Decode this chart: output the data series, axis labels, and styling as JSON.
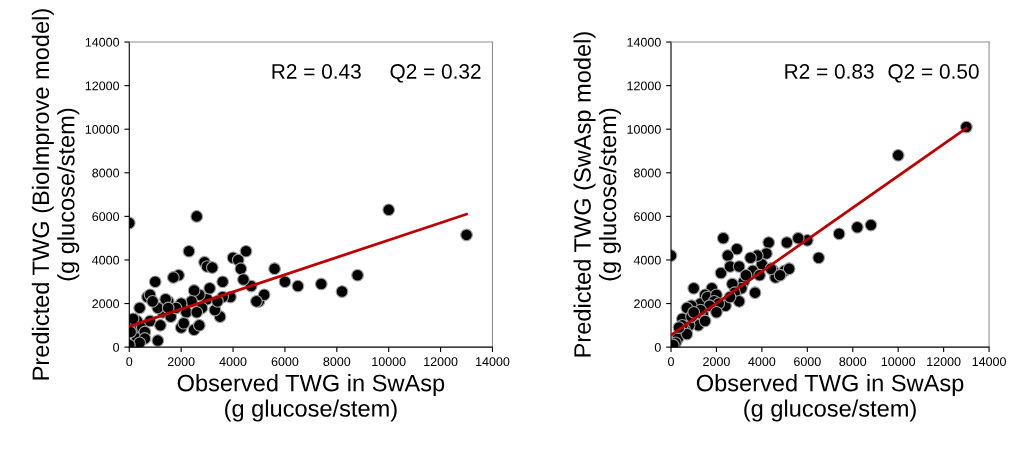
{
  "chart_data": [
    {
      "type": "scatter",
      "xlabel": "Observed TWG in SwAsp\n(g glucose/stem)",
      "ylabel": "Predicted TWG (BioImprove model)\n(g glucose/stem)",
      "annotations": [
        "R2 = 0.43",
        "Q2 = 0.32"
      ],
      "xlim": [
        0,
        14000
      ],
      "ylim": [
        0,
        14000
      ],
      "xticks": [
        0,
        2000,
        4000,
        6000,
        8000,
        10000,
        12000,
        14000
      ],
      "yticks": [
        0,
        2000,
        4000,
        6000,
        8000,
        10000,
        12000,
        14000
      ],
      "grid": false,
      "series": [
        {
          "color": "#000000",
          "marker": "circle",
          "x": [
            0,
            2600,
            10000,
            13000,
            2300,
            4500,
            4000,
            4200,
            2900,
            3000,
            3200,
            3600,
            4300,
            5600,
            6000,
            6500,
            7400,
            8200,
            8800,
            5000,
            5200,
            4900,
            4700,
            4400,
            3900,
            3600,
            3500,
            3300,
            3000,
            2700,
            2500,
            2400,
            2200,
            2000,
            1900,
            1700,
            1500,
            1400,
            1300,
            1100,
            1000,
            700,
            800,
            900,
            400,
            300,
            200,
            0,
            200,
            300,
            500,
            600,
            800,
            1200,
            1600,
            1800,
            2000,
            2100,
            2500,
            2700,
            2800,
            3100,
            3400,
            2600,
            1500,
            600,
            1100,
            400,
            0,
            150,
            50
          ],
          "values": [
            5700,
            6000,
            6300,
            5150,
            4400,
            4400,
            4100,
            4000,
            3900,
            3700,
            3650,
            3000,
            3600,
            3600,
            3000,
            2800,
            2900,
            2550,
            3300,
            2100,
            2400,
            2100,
            2800,
            3100,
            2300,
            2300,
            1400,
            1700,
            2200,
            2400,
            2600,
            2100,
            1600,
            2000,
            3300,
            3200,
            2100,
            2200,
            1600,
            1800,
            3000,
            2300,
            2400,
            2100,
            1800,
            1200,
            800,
            1000,
            100,
            400,
            900,
            700,
            1200,
            1000,
            1400,
            1800,
            900,
            1100,
            800,
            1000,
            1800,
            2700,
            2100,
            1600,
            1800,
            400,
            300,
            200,
            100,
            1300,
            700
          ]
        },
        {
          "type": "line",
          "marker": "none",
          "color": "#c00000",
          "x": [
            0,
            13000
          ],
          "values": [
            950,
            6100
          ]
        }
      ]
    },
    {
      "type": "scatter",
      "xlabel": "Observed TWG in SwAsp\n(g glucose/stem)",
      "ylabel": "Predicted TWG (SwAsp model)\n(g glucose/stem)",
      "annotations": [
        "R2 = 0.83",
        "Q2 = 0.50"
      ],
      "xlim": [
        0,
        14000
      ],
      "ylim": [
        0,
        14000
      ],
      "xticks": [
        0,
        2000,
        4000,
        6000,
        8000,
        10000,
        12000,
        14000
      ],
      "yticks": [
        0,
        2000,
        4000,
        6000,
        8000,
        10000,
        12000,
        14000
      ],
      "grid": false,
      "series": [
        {
          "color": "#000000",
          "marker": "circle",
          "x": [
            0,
            10000,
            13000,
            8800,
            8200,
            7400,
            6500,
            6000,
            5600,
            5100,
            5000,
            5200,
            4300,
            4200,
            4000,
            3800,
            3500,
            3600,
            2900,
            2500,
            2300,
            2200,
            2600,
            3000,
            3200,
            3100,
            3300,
            4500,
            4600,
            4400,
            1800,
            1500,
            1300,
            1000,
            900,
            700,
            500,
            1600,
            2000,
            1900,
            2700,
            2800,
            3000,
            2400,
            2100,
            1700,
            1400,
            1200,
            800,
            600,
            300,
            200,
            100,
            500,
            900,
            1500,
            1300,
            2600,
            3700,
            3900,
            4800,
            2000,
            700,
            350,
            1000
          ],
          "values": [
            4200,
            8800,
            10100,
            5600,
            5500,
            5200,
            4100,
            4900,
            5000,
            4800,
            3500,
            3600,
            4800,
            4300,
            3800,
            4200,
            4100,
            3500,
            4500,
            4200,
            5000,
            3400,
            3700,
            3700,
            3000,
            2700,
            3300,
            3500,
            3200,
            3600,
            2700,
            2400,
            2000,
            2700,
            1900,
            1800,
            1300,
            2300,
            2400,
            2100,
            2900,
            2500,
            2100,
            1900,
            2000,
            1900,
            1500,
            1000,
            1000,
            800,
            400,
            200,
            100,
            1000,
            1400,
            1200,
            1700,
            2300,
            2500,
            3300,
            3300,
            1600,
            600,
            900,
            1600
          ]
        },
        {
          "type": "line",
          "marker": "none",
          "color": "#c00000",
          "x": [
            0,
            13000
          ],
          "values": [
            550,
            10050
          ]
        }
      ]
    }
  ]
}
